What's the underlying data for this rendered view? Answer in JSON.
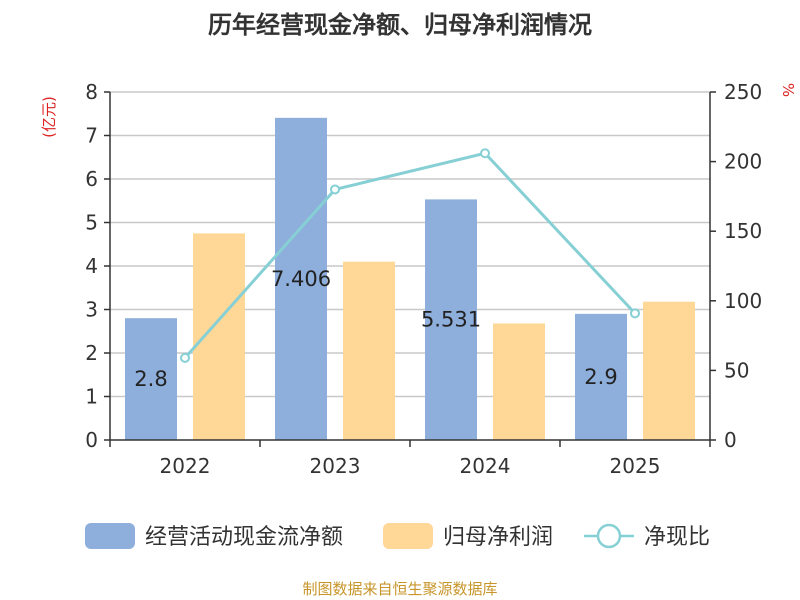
{
  "chart_data": {
    "type": "bar",
    "title": "历年经营现金净额、归母净利润情况",
    "categories": [
      "2022",
      "2023",
      "2024",
      "2025"
    ],
    "y_left": {
      "unit": "(亿元)",
      "ylim": [
        0,
        8
      ],
      "ticks": [
        0,
        1,
        2,
        3,
        4,
        5,
        6,
        7,
        8
      ]
    },
    "y_right": {
      "unit": "%",
      "ylim": [
        0,
        250
      ],
      "ticks": [
        0,
        50,
        100,
        150,
        200,
        250
      ]
    },
    "grid": true,
    "legend_position": "bottom",
    "series": [
      {
        "name": "经营活动现金流净额",
        "type": "bar",
        "axis": "left",
        "color": "#8eaedb",
        "values": [
          2.8,
          7.406,
          5.531,
          2.9
        ],
        "labels": [
          "2.8",
          "7.406",
          "5.531",
          "2.9"
        ]
      },
      {
        "name": "归母净利润",
        "type": "bar",
        "axis": "left",
        "color": "#ffd797",
        "values": [
          4.75,
          4.1,
          2.68,
          3.18
        ]
      },
      {
        "name": "净现比",
        "type": "line",
        "axis": "right",
        "color": "#86d0d5",
        "values": [
          59,
          180,
          206,
          91
        ]
      }
    ]
  },
  "footer": {
    "source": "制图数据来自恒生聚源数据库"
  }
}
